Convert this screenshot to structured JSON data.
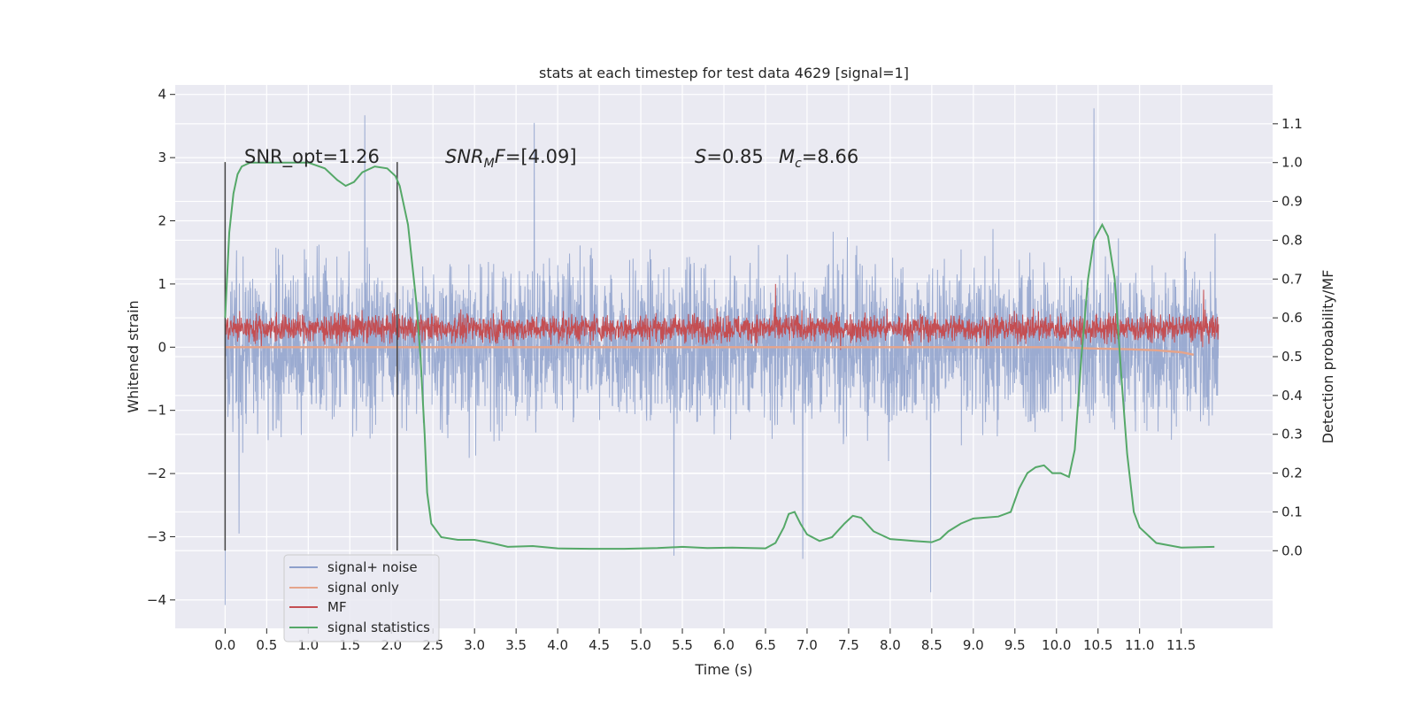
{
  "chart_data": {
    "type": "line",
    "title": "stats at each timestep for test data 4629 [signal=1]",
    "xlabel": "Time (s)",
    "ylabel": "Whitened strain",
    "y2label": "Detection probability/MF",
    "xlim": [
      -0.6,
      12.6
    ],
    "ylim": [
      -4.45,
      4.15
    ],
    "y2lim": [
      -0.2,
      1.2
    ],
    "xticks": [
      0.0,
      0.5,
      1.0,
      1.5,
      2.0,
      2.5,
      3.0,
      3.5,
      4.0,
      4.5,
      5.0,
      5.5,
      6.0,
      6.5,
      7.0,
      7.5,
      8.0,
      8.5,
      9.0,
      9.5,
      10.0,
      10.5,
      11.0,
      11.5
    ],
    "xticklabels": [
      "0.0",
      "0.5",
      "1.0",
      "1.5",
      "2.0",
      "2.5",
      "3.0",
      "3.5",
      "4.0",
      "4.5",
      "5.0",
      "5.5",
      "6.0",
      "6.5",
      "7.0",
      "7.5",
      "8.0",
      "8.5",
      "9.0",
      "9.5",
      "10.0",
      "10.5",
      "11.0",
      "11.5"
    ],
    "yticks": [
      -4,
      -3,
      -2,
      -1,
      0,
      1,
      2,
      3,
      4
    ],
    "yticklabels": [
      "−4",
      "−3",
      "−2",
      "−1",
      "0",
      "1",
      "2",
      "3",
      "4"
    ],
    "y2ticks": [
      0.0,
      0.1,
      0.2,
      0.3,
      0.4,
      0.5,
      0.6,
      0.7,
      0.8,
      0.9,
      1.0,
      1.1
    ],
    "y2ticklabels": [
      "0.0",
      "0.1",
      "0.2",
      "0.3",
      "0.4",
      "0.5",
      "0.6",
      "0.7",
      "0.8",
      "0.9",
      "1.0",
      "1.1"
    ],
    "grid": true,
    "legend_position": "lower-left",
    "colors": {
      "background": "#eaeaf2",
      "grid": "#ffffff",
      "signal_noise": "#8da0cb",
      "signal_only": "#e5a48b",
      "mf": "#c44e52",
      "signal_statistics": "#55a868",
      "vline": "#444444"
    },
    "annotations": {
      "snr_opt": "SNR_opt=1.26",
      "snr_mf_main": "SNR",
      "snr_mf_sub": "M",
      "snr_mf_tail": "F",
      "snr_mf_value": "=[4.09]",
      "s_main": "S",
      "s_value": "=0.85",
      "mc_main": "M",
      "mc_sub": "c",
      "mc_value": "=8.66"
    },
    "vertical_lines_x": [
      0.0,
      2.07
    ],
    "series": [
      {
        "name": "signal+ noise",
        "axis": "left",
        "style": "dense noise band",
        "t_range": [
          0.0,
          11.95
        ],
        "envelope_typical": [
          -1.6,
          1.7
        ],
        "peak_extremes": [
          {
            "x": 0.0,
            "y": -4.08
          },
          {
            "x": 0.17,
            "y": -2.95
          },
          {
            "x": 1.68,
            "y": 3.67
          },
          {
            "x": 3.72,
            "y": 3.55
          },
          {
            "x": 5.4,
            "y": -3.3
          },
          {
            "x": 6.95,
            "y": -3.35
          },
          {
            "x": 8.49,
            "y": -3.88
          },
          {
            "x": 10.45,
            "y": 3.78
          }
        ]
      },
      {
        "name": "signal only",
        "axis": "left",
        "points": [
          [
            0.0,
            0.0
          ],
          [
            10.0,
            0.0
          ],
          [
            10.4,
            -0.02
          ],
          [
            10.8,
            -0.03
          ],
          [
            11.2,
            -0.05
          ],
          [
            11.5,
            -0.08
          ],
          [
            11.65,
            -0.12
          ]
        ]
      },
      {
        "name": "MF",
        "axis": "left",
        "style": "dense noise band",
        "t_range": [
          0.0,
          11.95
        ],
        "envelope_typical": [
          0.0,
          0.62
        ],
        "peak_extremes": [
          {
            "x": 6.62,
            "y": 1.0
          },
          {
            "x": 11.77,
            "y": 0.91
          }
        ]
      },
      {
        "name": "signal statistics",
        "axis": "right",
        "points": [
          [
            0.0,
            0.6
          ],
          [
            0.05,
            0.82
          ],
          [
            0.1,
            0.92
          ],
          [
            0.15,
            0.97
          ],
          [
            0.2,
            0.99
          ],
          [
            0.3,
            1.0
          ],
          [
            0.6,
            1.0
          ],
          [
            0.8,
            1.0
          ],
          [
            1.0,
            1.0
          ],
          [
            1.2,
            0.985
          ],
          [
            1.35,
            0.955
          ],
          [
            1.45,
            0.94
          ],
          [
            1.55,
            0.95
          ],
          [
            1.65,
            0.975
          ],
          [
            1.8,
            0.99
          ],
          [
            1.95,
            0.985
          ],
          [
            2.05,
            0.965
          ],
          [
            2.1,
            0.94
          ],
          [
            2.2,
            0.84
          ],
          [
            2.3,
            0.64
          ],
          [
            2.35,
            0.5
          ],
          [
            2.4,
            0.3
          ],
          [
            2.43,
            0.15
          ],
          [
            2.48,
            0.07
          ],
          [
            2.6,
            0.035
          ],
          [
            2.8,
            0.028
          ],
          [
            3.0,
            0.028
          ],
          [
            3.2,
            0.02
          ],
          [
            3.4,
            0.01
          ],
          [
            3.7,
            0.012
          ],
          [
            4.0,
            0.006
          ],
          [
            4.4,
            0.005
          ],
          [
            4.8,
            0.005
          ],
          [
            5.2,
            0.007
          ],
          [
            5.5,
            0.01
          ],
          [
            5.8,
            0.007
          ],
          [
            6.1,
            0.008
          ],
          [
            6.5,
            0.006
          ],
          [
            6.62,
            0.02
          ],
          [
            6.72,
            0.06
          ],
          [
            6.78,
            0.095
          ],
          [
            6.85,
            0.1
          ],
          [
            6.92,
            0.07
          ],
          [
            7.0,
            0.042
          ],
          [
            7.15,
            0.025
          ],
          [
            7.3,
            0.035
          ],
          [
            7.45,
            0.07
          ],
          [
            7.55,
            0.09
          ],
          [
            7.65,
            0.085
          ],
          [
            7.8,
            0.05
          ],
          [
            8.0,
            0.03
          ],
          [
            8.3,
            0.025
          ],
          [
            8.5,
            0.022
          ],
          [
            8.6,
            0.03
          ],
          [
            8.7,
            0.05
          ],
          [
            8.85,
            0.07
          ],
          [
            9.0,
            0.083
          ],
          [
            9.3,
            0.088
          ],
          [
            9.45,
            0.1
          ],
          [
            9.55,
            0.16
          ],
          [
            9.65,
            0.2
          ],
          [
            9.75,
            0.215
          ],
          [
            9.85,
            0.22
          ],
          [
            9.95,
            0.2
          ],
          [
            10.05,
            0.2
          ],
          [
            10.15,
            0.19
          ],
          [
            10.22,
            0.26
          ],
          [
            10.3,
            0.5
          ],
          [
            10.38,
            0.7
          ],
          [
            10.45,
            0.8
          ],
          [
            10.55,
            0.84
          ],
          [
            10.62,
            0.81
          ],
          [
            10.7,
            0.7
          ],
          [
            10.78,
            0.45
          ],
          [
            10.85,
            0.25
          ],
          [
            10.93,
            0.1
          ],
          [
            11.0,
            0.06
          ],
          [
            11.2,
            0.02
          ],
          [
            11.5,
            0.008
          ],
          [
            11.9,
            0.01
          ]
        ]
      }
    ]
  }
}
